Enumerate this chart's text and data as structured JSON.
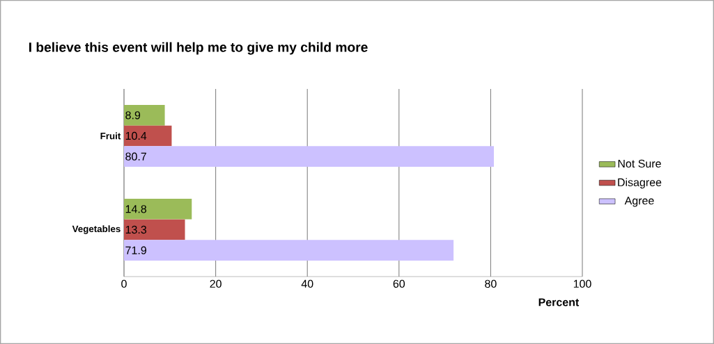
{
  "chart_data": {
    "type": "bar",
    "orientation": "horizontal",
    "title": "I believe this event will help me to give my child more",
    "xlabel": "Percent",
    "categories": [
      "Fruit",
      "Vegetables"
    ],
    "series": [
      {
        "name": "Not Sure",
        "color": "#9bbb59",
        "values": [
          8.9,
          14.8
        ]
      },
      {
        "name": "Disagree",
        "color": "#c0504d",
        "values": [
          10.4,
          13.3
        ]
      },
      {
        "name": "Agree",
        "color": "#ccc1ff",
        "values": [
          80.7,
          71.9
        ]
      }
    ],
    "xlim": [
      0,
      100
    ],
    "xticks": [
      0,
      20,
      40,
      60,
      80,
      100
    ],
    "grid": "x",
    "legend": "right",
    "data_labels": true
  }
}
